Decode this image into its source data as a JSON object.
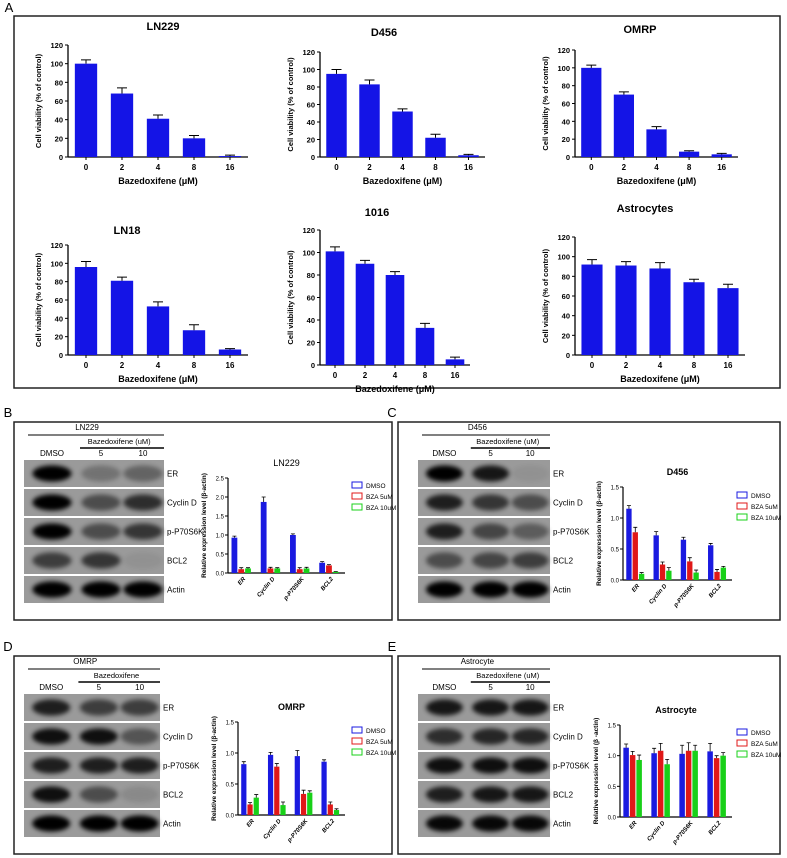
{
  "panels": {
    "A": {
      "label": "A"
    },
    "B": {
      "label": "B",
      "cell_line": "LN229",
      "treatment": "Bazedoxifene (uM)",
      "lanes": [
        "DMSO",
        "5",
        "10"
      ]
    },
    "C": {
      "label": "C",
      "cell_line": "D456",
      "treatment": "Bazedoxifene (uM)",
      "lanes": [
        "DMSO",
        "5",
        "10"
      ]
    },
    "D": {
      "label": "D",
      "cell_line": "OMRP",
      "treatment": "Bazedoxifene",
      "lanes": [
        "DMSO",
        "5",
        "10"
      ]
    },
    "E": {
      "label": "E",
      "cell_line": "Astrocyte",
      "treatment": "Bazedoxifene (uM)",
      "lanes": [
        "DMSO",
        "5",
        "10"
      ]
    }
  },
  "blot_labels": [
    "ER",
    "Cyclin D",
    "p-P70S6K",
    "BCL2",
    "Actin"
  ],
  "colors": {
    "bar": "#1414e6",
    "dmso": "#1a1ae0",
    "bza5": "#e01818",
    "bza10": "#18d018"
  },
  "chart_data": [
    {
      "type": "bar",
      "title": "LN229",
      "xlabel": "Bazedoxifene (μM)",
      "ylabel": "Cell viability (% of control)",
      "categories": [
        "0",
        "2",
        "4",
        "8",
        "16"
      ],
      "values": [
        100,
        68,
        41,
        20,
        1
      ],
      "errors": [
        4,
        6,
        4,
        3,
        1
      ],
      "ylim": [
        0,
        120
      ],
      "yticks": [
        "0",
        "20",
        "40",
        "60",
        "80",
        "100",
        "120"
      ]
    },
    {
      "type": "bar",
      "title": "D456",
      "xlabel": "Bazedoxifene (μM)",
      "ylabel": "Cell viability (% of control)",
      "categories": [
        "0",
        "2",
        "4",
        "8",
        "16"
      ],
      "values": [
        95,
        83,
        52,
        22,
        2
      ],
      "errors": [
        5,
        5,
        3,
        4,
        1
      ],
      "ylim": [
        0,
        120
      ],
      "yticks": [
        "0",
        "20",
        "40",
        "60",
        "80",
        "100",
        "120"
      ]
    },
    {
      "type": "bar",
      "title": "OMRP",
      "xlabel": "Bazedoxifene (μM)",
      "ylabel": "Cell viability (% of control)",
      "categories": [
        "0",
        "2",
        "4",
        "8",
        "16"
      ],
      "values": [
        100,
        70,
        31,
        6,
        3
      ],
      "errors": [
        3,
        3,
        3,
        1,
        1
      ],
      "ylim": [
        0,
        120
      ],
      "yticks": [
        "0",
        "20",
        "40",
        "60",
        "80",
        "100",
        "120"
      ]
    },
    {
      "type": "bar",
      "title": "LN18",
      "xlabel": "Bazedoxifene (μM)",
      "ylabel": "Cell viability (% of control)",
      "categories": [
        "0",
        "2",
        "4",
        "8",
        "16"
      ],
      "values": [
        96,
        81,
        53,
        27,
        6
      ],
      "errors": [
        6,
        4,
        5,
        6,
        1
      ],
      "ylim": [
        0,
        120
      ],
      "yticks": [
        "0",
        "20",
        "40",
        "60",
        "80",
        "100",
        "120"
      ]
    },
    {
      "type": "bar",
      "title": "1016",
      "xlabel": "Bazedoxifene (μM)",
      "ylabel": "Cell viability (% of control)",
      "categories": [
        "0",
        "2",
        "4",
        "8",
        "16"
      ],
      "values": [
        101,
        90,
        80,
        33,
        5
      ],
      "errors": [
        4,
        3,
        3,
        4,
        2
      ],
      "ylim": [
        0,
        120
      ],
      "yticks": [
        "0",
        "20",
        "40",
        "60",
        "80",
        "100",
        "120"
      ]
    },
    {
      "type": "bar",
      "title": "Astrocytes",
      "xlabel": "Bazedoxifene (μM)",
      "ylabel": "Cell viability (% of control)",
      "categories": [
        "0",
        "2",
        "4",
        "8",
        "16"
      ],
      "values": [
        92,
        91,
        88,
        74,
        68
      ],
      "errors": [
        5,
        4,
        6,
        3,
        4
      ],
      "ylim": [
        0,
        120
      ],
      "yticks": [
        "0",
        "20",
        "40",
        "60",
        "80",
        "100",
        "120"
      ]
    },
    {
      "type": "bar",
      "title": "LN229",
      "ylabel": "Relative expression level (β-actin)",
      "categories": [
        "ER",
        "Cyclin D",
        "p-P70S6K",
        "BCL2"
      ],
      "series": [
        {
          "name": "DMSO",
          "values": [
            0.93,
            1.87,
            1.0,
            0.27
          ],
          "errors": [
            0.04,
            0.13,
            0.03,
            0.03
          ]
        },
        {
          "name": "BZA 5uM",
          "values": [
            0.1,
            0.12,
            0.1,
            0.2
          ],
          "errors": [
            0.04,
            0.03,
            0.04,
            0.02
          ]
        },
        {
          "name": "BZA 10uM",
          "values": [
            0.12,
            0.12,
            0.12,
            0.03
          ],
          "errors": [
            0.02,
            0.02,
            0.03,
            0.01
          ]
        }
      ],
      "ylim": [
        0,
        2.5
      ],
      "yticks": [
        "0.0",
        "0.5",
        "1.0",
        "1.5",
        "2.0",
        "2.5"
      ],
      "legend": "right"
    },
    {
      "type": "bar",
      "title": "D456",
      "ylabel": "Relative expression level (β-actin)",
      "categories": [
        "ER",
        "Cyclin D",
        "p-P70S6K",
        "BCL2"
      ],
      "series": [
        {
          "name": "DMSO",
          "values": [
            1.15,
            0.72,
            0.65,
            0.56
          ],
          "errors": [
            0.05,
            0.06,
            0.04,
            0.03
          ]
        },
        {
          "name": "BZA 5uM",
          "values": [
            0.77,
            0.25,
            0.3,
            0.13
          ],
          "errors": [
            0.08,
            0.04,
            0.06,
            0.04
          ]
        },
        {
          "name": "BZA 10uM",
          "values": [
            0.1,
            0.15,
            0.12,
            0.2
          ],
          "errors": [
            0.02,
            0.05,
            0.04,
            0.02
          ]
        }
      ],
      "ylim": [
        0,
        1.5
      ],
      "yticks": [
        "0.0",
        "0.5",
        "1.0",
        "1.5"
      ],
      "legend": "right"
    },
    {
      "type": "bar",
      "title": "OMRP",
      "ylabel": "Relative expression level (β-actin)",
      "categories": [
        "ER",
        "Cyclin D",
        "p-P70S6K",
        "BCL2"
      ],
      "series": [
        {
          "name": "DMSO",
          "values": [
            0.82,
            0.97,
            0.95,
            0.86
          ],
          "errors": [
            0.04,
            0.04,
            0.09,
            0.03
          ]
        },
        {
          "name": "BZA 5uM",
          "values": [
            0.17,
            0.78,
            0.34,
            0.17
          ],
          "errors": [
            0.03,
            0.05,
            0.06,
            0.04
          ]
        },
        {
          "name": "BZA 10uM",
          "values": [
            0.28,
            0.16,
            0.36,
            0.08
          ],
          "errors": [
            0.05,
            0.05,
            0.03,
            0.02
          ]
        }
      ],
      "ylim": [
        0,
        1.5
      ],
      "yticks": [
        "0.0",
        "0.5",
        "1.0",
        "1.5"
      ],
      "legend": "right"
    },
    {
      "type": "bar",
      "title": "Astrocyte",
      "ylabel": "Relative expression level (β -actin)",
      "categories": [
        "ER",
        "Cyclin D",
        "p-P70S6K",
        "BCL2"
      ],
      "series": [
        {
          "name": "DMSO",
          "values": [
            1.13,
            1.04,
            1.03,
            1.07
          ],
          "errors": [
            0.06,
            0.08,
            0.14,
            0.13
          ]
        },
        {
          "name": "BZA 5uM",
          "values": [
            1.01,
            1.08,
            1.08,
            0.96
          ],
          "errors": [
            0.06,
            0.12,
            0.13,
            0.04
          ]
        },
        {
          "name": "BZA 10uM",
          "values": [
            0.93,
            0.86,
            1.08,
            1.0
          ],
          "errors": [
            0.08,
            0.08,
            0.09,
            0.05
          ]
        }
      ],
      "ylim": [
        0,
        1.5
      ],
      "yticks": [
        "0.0",
        "0.5",
        "1.0",
        "1.5"
      ],
      "legend": "right"
    }
  ]
}
